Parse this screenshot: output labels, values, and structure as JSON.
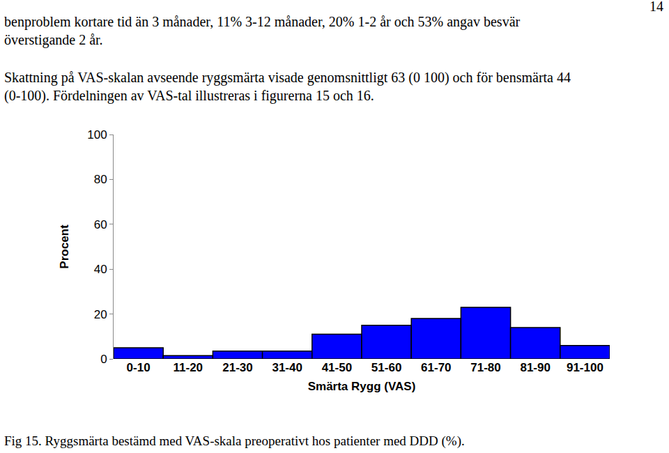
{
  "page_number": "14",
  "paragraphs": [
    [
      "benproblem kortare tid än 3 månader, 11% 3-12 månader, 20% 1-2 år och 53% angav besvär",
      "överstigande 2 år."
    ],
    [
      "Skattning på VAS-skalan avseende ryggsmärta visade genomsnittligt 63 (0 100) och för bensmärta 44",
      "(0-100). Fördelningen av VAS-tal illustreras i figurerna 15 och 16."
    ]
  ],
  "caption": "Fig 15. Ryggsmärta bestämd med VAS-skala preoperativt hos patienter med DDD (%).",
  "chart_data": {
    "type": "bar",
    "x_label": "Smärta Rygg (VAS)",
    "y_label": "Procent",
    "categories": [
      "0-10",
      "11-20",
      "21-30",
      "31-40",
      "41-50",
      "51-60",
      "61-70",
      "71-80",
      "81-90",
      "91-100"
    ],
    "values": [
      5,
      1.5,
      3.5,
      3.5,
      11,
      15,
      18,
      23,
      14,
      6
    ],
    "color": "#0000ff",
    "ylim": [
      0,
      100
    ],
    "yticks": [
      0,
      20,
      40,
      60,
      80,
      100
    ],
    "grid": false
  }
}
